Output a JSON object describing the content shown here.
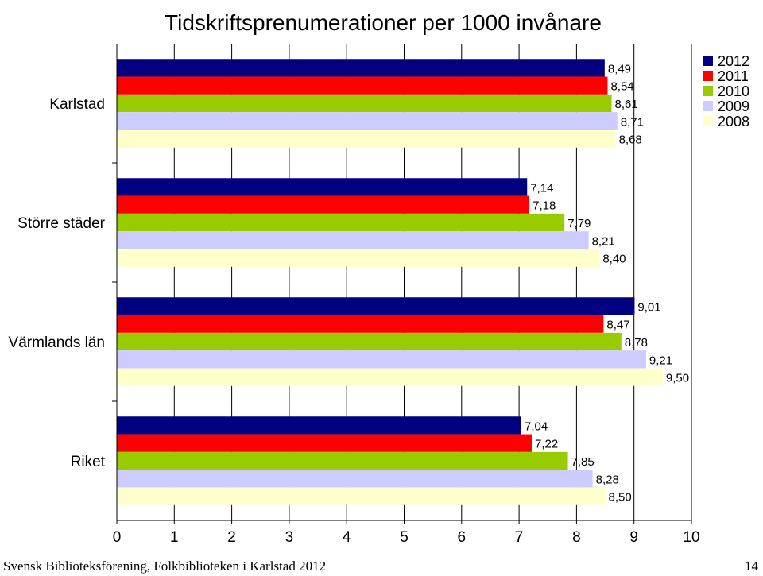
{
  "chart_data": {
    "type": "bar",
    "orientation": "horizontal",
    "title": "Tidskriftsprenumerationer per 1000 invånare",
    "categories": [
      "Karlstad",
      "Större städer",
      "Värmlands län",
      "Riket"
    ],
    "series": [
      {
        "name": "2012",
        "color": "#000080",
        "values": [
          8.49,
          7.14,
          9.01,
          7.04
        ],
        "labels": [
          "8,49",
          "7,14",
          "9,01",
          "7,04"
        ]
      },
      {
        "name": "2011",
        "color": "#ff0000",
        "values": [
          8.54,
          7.18,
          8.47,
          7.22
        ],
        "labels": [
          "8,54",
          "7,18",
          "8,47",
          "7,22"
        ]
      },
      {
        "name": "2010",
        "color": "#99cc00",
        "values": [
          8.61,
          7.79,
          8.78,
          7.85
        ],
        "labels": [
          "8,61",
          "7,79",
          "8,78",
          "7,85"
        ]
      },
      {
        "name": "2009",
        "color": "#ccccff",
        "values": [
          8.71,
          8.21,
          9.21,
          8.28
        ],
        "labels": [
          "8,71",
          "8,21",
          "9,21",
          "8,28"
        ]
      },
      {
        "name": "2008",
        "color": "#ffffcc",
        "values": [
          8.68,
          8.4,
          9.5,
          8.5
        ],
        "labels": [
          "8,68",
          "8,40",
          "9,50",
          "8,50"
        ]
      }
    ],
    "xlim": [
      0,
      10
    ],
    "xticks": [
      "0",
      "1",
      "2",
      "3",
      "4",
      "5",
      "6",
      "7",
      "8",
      "9",
      "10"
    ],
    "grid": true,
    "legend": "top-right"
  },
  "footer": {
    "left": "Svensk Biblioteksförening, Folkbiblioteken i Karlstad 2012",
    "right": "14"
  }
}
